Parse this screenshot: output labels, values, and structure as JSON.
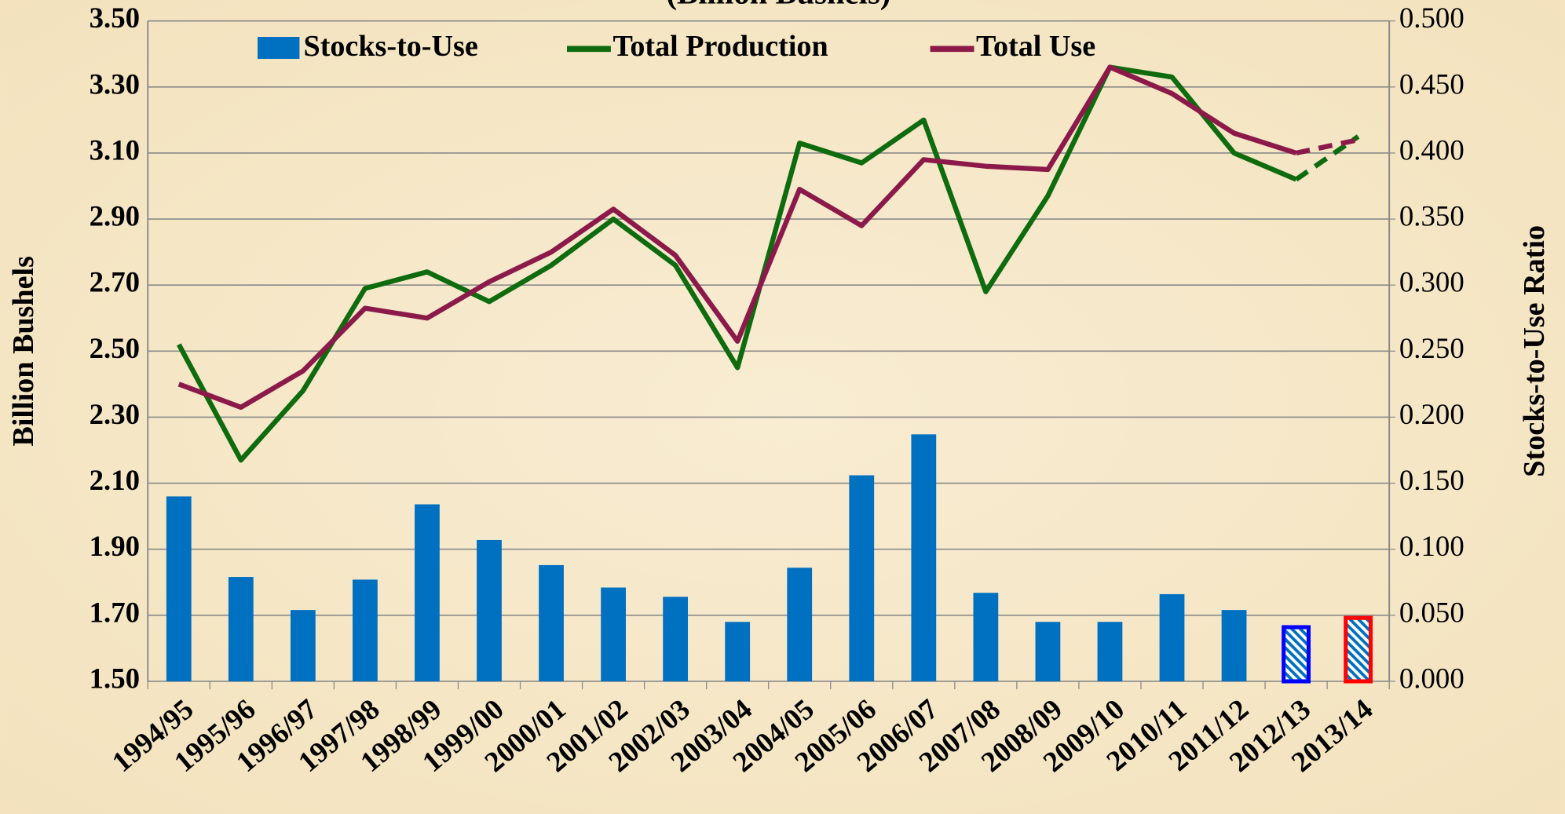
{
  "chart_data": {
    "type": "bar_line",
    "title": "(Billion Bushels)",
    "y_label": "Billion Bushels",
    "y2_label": "Stocks-to-Use Ratio",
    "categories": [
      "1994/95",
      "1995/96",
      "1996/97",
      "1997/98",
      "1998/99",
      "1999/00",
      "2000/01",
      "2001/02",
      "2002/03",
      "2003/04",
      "2004/05",
      "2005/06",
      "2006/07",
      "2007/08",
      "2008/09",
      "2009/10",
      "2010/11",
      "2011/12",
      "2012/13",
      "2013/14"
    ],
    "series": [
      {
        "name": "Stocks-to-Use",
        "type": "bar",
        "axis": "y2",
        "color": "#0070c0",
        "values": [
          0.14,
          0.079,
          0.054,
          0.077,
          0.134,
          0.107,
          0.088,
          0.071,
          0.064,
          0.045,
          0.086,
          0.156,
          0.187,
          0.067,
          0.045,
          0.045,
          0.066,
          0.054,
          0.041,
          0.048
        ],
        "hatched_from": "2012/13",
        "hatch_outlines": [
          "#0000ff",
          "#ff0000"
        ]
      },
      {
        "name": "Total Production",
        "type": "line",
        "color": "#0e6b0e",
        "values": [
          2.52,
          2.17,
          2.38,
          2.69,
          2.74,
          2.65,
          2.76,
          2.9,
          2.76,
          2.45,
          3.13,
          3.07,
          3.2,
          2.68,
          2.97,
          3.36,
          3.33,
          3.1,
          3.02,
          3.15
        ],
        "dashed_from": "2012/13"
      },
      {
        "name": "Total Use",
        "type": "line",
        "color": "#8b1a4a",
        "values": [
          2.4,
          2.33,
          2.44,
          2.63,
          2.6,
          2.71,
          2.8,
          2.93,
          2.79,
          2.53,
          2.99,
          2.88,
          3.08,
          3.06,
          3.05,
          3.36,
          3.28,
          3.16,
          3.1,
          3.14
        ],
        "dashed_from": "2012/13"
      }
    ],
    "ylim": [
      1.5,
      3.5
    ],
    "yticks": [
      {
        "value": 1.5,
        "label": "1.50"
      },
      {
        "value": 1.7,
        "label": "1.70"
      },
      {
        "value": 1.9,
        "label": "1.90"
      },
      {
        "value": 2.1,
        "label": "2.10"
      },
      {
        "value": 2.3,
        "label": "2.30"
      },
      {
        "value": 2.5,
        "label": "2.50"
      },
      {
        "value": 2.7,
        "label": "2.70"
      },
      {
        "value": 2.9,
        "label": "2.90"
      },
      {
        "value": 3.1,
        "label": "3.10"
      },
      {
        "value": 3.3,
        "label": "3.30"
      },
      {
        "value": 3.5,
        "label": "3.50"
      }
    ],
    "y2lim": [
      0,
      0.5
    ],
    "y2ticks": [
      {
        "value": 0,
        "label": "0.000"
      },
      {
        "value": 0.05,
        "label": "0.050"
      },
      {
        "value": 0.1,
        "label": "0.100"
      },
      {
        "value": 0.15,
        "label": "0.150"
      },
      {
        "value": 0.2,
        "label": "0.200"
      },
      {
        "value": 0.25,
        "label": "0.250"
      },
      {
        "value": 0.3,
        "label": "0.300"
      },
      {
        "value": 0.35,
        "label": "0.350"
      },
      {
        "value": 0.4,
        "label": "0.400"
      },
      {
        "value": 0.45,
        "label": "0.450"
      },
      {
        "value": 0.5,
        "label": "0.500"
      }
    ],
    "grid": true,
    "legend": "top"
  }
}
